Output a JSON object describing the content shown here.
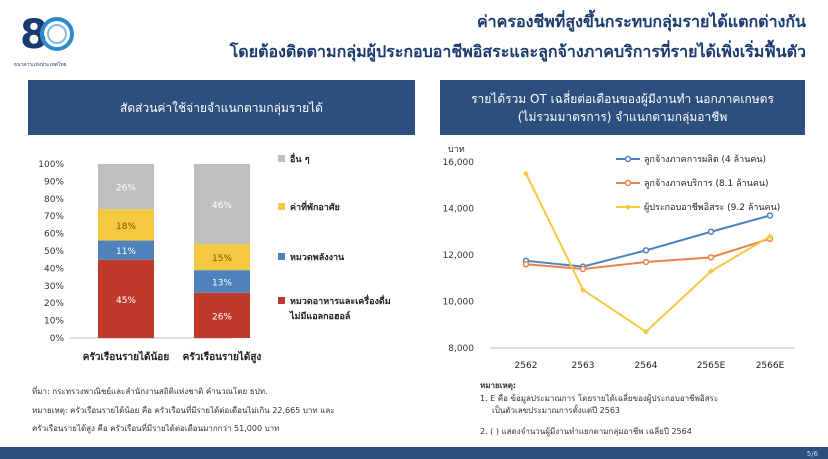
{
  "header": {
    "logo_text": "8",
    "logo_caption": "ธนาคารแห่งประเทศไทย",
    "title_line1": "ค่าครองชีพที่สูงขึ้นกระทบกลุ่มรายได้แตกต่างกัน",
    "title_line2": "โดยต้องติดตามกลุ่มผู้ประกอบอาชีพอิสระและลูกจ้างภาคบริการที่รายได้เพิ่งเริ่มฟื้นตัว"
  },
  "left_panel": {
    "title": "สัดส่วนค่าใช้จ่ายจำแนกตามกลุ่มรายได้"
  },
  "right_panel": {
    "title_line1": "รายได้รวม OT เฉลี่ยต่อเดือนของผู้มีงานทำ นอกภาคเกษตร",
    "title_line2": "(ไม่รวมมาตรการ) จำแนกตามกลุ่มอาชีพ"
  },
  "colors": {
    "navy": "#2c4f7e",
    "food": "#c0392b",
    "energy": "#4f81bd",
    "housing": "#f5c842",
    "other": "#bfbfbf",
    "manufacturing": "#4f81bd",
    "services": "#e8834a",
    "self_employed": "#f5c842"
  },
  "chart_data": [
    {
      "type": "bar",
      "stacked": true,
      "categories": [
        "ครัวเรือนรายได้น้อย",
        "ครัวเรือนรายได้สูง"
      ],
      "series": [
        {
          "name": "หมวดอาหารและเครื่องดื่ม",
          "name_line2": "ไม่มีแอลกอฮอล์",
          "values": [
            45,
            26
          ],
          "labels": [
            "45%",
            "26%"
          ]
        },
        {
          "name": "หมวดพลังงาน",
          "values": [
            11,
            13
          ],
          "labels": [
            "11%",
            "13%"
          ]
        },
        {
          "name": "ค่าที่พักอาศัย",
          "values": [
            18,
            15
          ],
          "labels": [
            "18%",
            "15%"
          ]
        },
        {
          "name": "อื่น ๆ",
          "values": [
            26,
            46
          ],
          "labels": [
            "26%",
            "46%"
          ]
        }
      ],
      "ylim": [
        0,
        100
      ],
      "yticks": [
        "0%",
        "10%",
        "20%",
        "30%",
        "40%",
        "50%",
        "60%",
        "70%",
        "80%",
        "90%",
        "100%"
      ],
      "legend": "right"
    },
    {
      "type": "line",
      "x": [
        "2562",
        "2563",
        "2564",
        "2565E",
        "2566E"
      ],
      "ylabel": "บาท",
      "ylim": [
        8000,
        16000
      ],
      "yticks": [
        "8,000",
        "10,000",
        "12,000",
        "14,000",
        "16,000"
      ],
      "series": [
        {
          "name": "ลูกจ้างภาคการผลิต (4 ล้านคน)",
          "values": [
            11750,
            11500,
            12200,
            13000,
            13700
          ]
        },
        {
          "name": "ลูกจ้างภาคบริการ (8.1 ล้านคน)",
          "values": [
            11600,
            11400,
            11700,
            11900,
            12700
          ]
        },
        {
          "name": "ผู้ประกอบอาชีพอิสระ (9.2 ล้านคน)",
          "values": [
            15500,
            10500,
            8700,
            11300,
            12800
          ]
        }
      ],
      "grid": false,
      "legend": "top-right"
    }
  ],
  "notes_left": {
    "source": "ที่มา: กระทรวงพาณิชย์และสำนักงานสถิติแห่งชาติ คำนวณโดย ธปท.",
    "remark_line1": "หมายเหตุ: ครัวเรือนรายได้น้อย คือ ครัวเรือนที่มีรายได้ต่อเดือนไม่เกิน 22,665 บาท และ",
    "remark_line2": "ครัวเรือนรายได้สูง คือ ครัวเรือนที่มีรายได้ต่อเดือนมากกว่า 51,000 บาท"
  },
  "notes_right": {
    "heading": "หมายเหตุ:",
    "line1": "1. E คือ ข้อมูลประมาณการ โดยรายได้เฉลี่ยของผู้ประกอบอาชีพอิสระ",
    "line2": "เป็นตัวเลขประมาณการตั้งแต่ปี 2563",
    "line3": "2. ( ) แสดงจำนวนผู้มีงานทำแยกตามกลุ่มอาชีพ เฉลี่ยปี 2564"
  },
  "footer": {
    "page": "5/6"
  }
}
